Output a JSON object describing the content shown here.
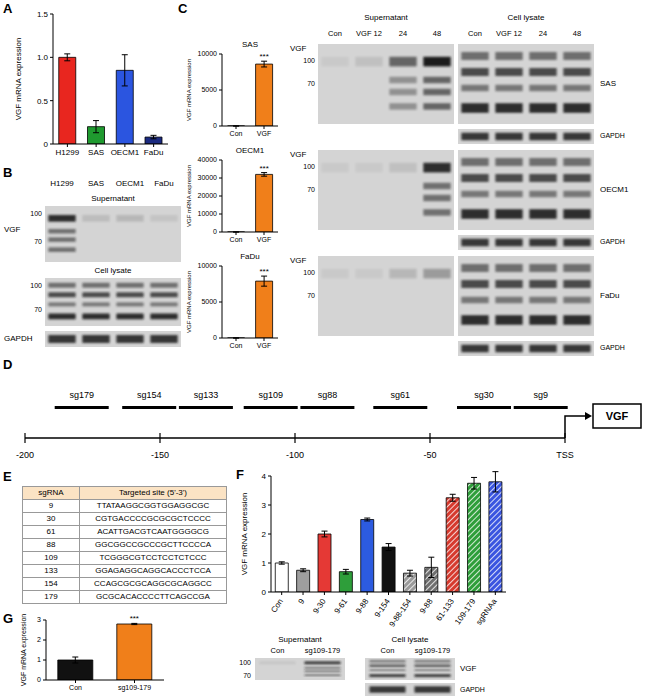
{
  "panel_labels": [
    "A",
    "B",
    "C",
    "D",
    "E",
    "F",
    "G"
  ],
  "chart_data": [
    {
      "type": "bar",
      "y_label": "VGF mRNA expression",
      "categories": [
        "H1299",
        "SAS",
        "OECM1",
        "FaDu"
      ],
      "values": [
        1.0,
        0.2,
        0.85,
        0.08
      ],
      "errors": [
        0.04,
        0.07,
        0.18,
        0.02
      ],
      "colors": [
        "#e8261f",
        "#1f9a2f",
        "#2b55e0",
        "#1b2a80"
      ],
      "ylim": [
        0,
        1.5
      ],
      "yticks": [
        0,
        0.5,
        {
          "value": 1,
          "label": "1.0"
        },
        1.5
      ]
    },
    {
      "type": "bar",
      "title": "SAS",
      "y_label": "VGF mRNA expression",
      "categories": [
        "Con",
        "VGF"
      ],
      "values": [
        1,
        8600
      ],
      "errors": [
        0.2,
        400
      ],
      "colors": [
        "#ffffff",
        "#f07f1a"
      ],
      "ylim": [
        0,
        10000
      ],
      "yticks": [
        0,
        5000,
        10000
      ],
      "annotations": [
        {
          "category": "VGF",
          "text": "***"
        }
      ]
    },
    {
      "type": "bar",
      "title": "OECM1",
      "y_label": "VGF mRNA expression",
      "categories": [
        "Con",
        "VGF"
      ],
      "values": [
        1,
        32000
      ],
      "errors": [
        0.2,
        1000
      ],
      "colors": [
        "#ffffff",
        "#f07f1a"
      ],
      "ylim": [
        0,
        40000
      ],
      "yticks": [
        0,
        10000,
        20000,
        30000,
        40000
      ],
      "annotations": [
        {
          "category": "VGF",
          "text": "***"
        }
      ]
    },
    {
      "type": "bar",
      "title": "FaDu",
      "y_label": "VGF mRNA expression",
      "categories": [
        "Con",
        "VGF"
      ],
      "values": [
        1,
        7900
      ],
      "errors": [
        0.2,
        700
      ],
      "colors": [
        "#ffffff",
        "#f07f1a"
      ],
      "ylim": [
        0,
        10000
      ],
      "yticks": [
        0,
        5000,
        10000
      ],
      "annotations": [
        {
          "category": "VGF",
          "text": "***"
        }
      ]
    },
    {
      "type": "bar",
      "y_label": "VGF mRNA expression",
      "categories": [
        "Con",
        "9",
        "9-30",
        "9-61",
        "9-88",
        "9-154",
        "9-88-154",
        "9-88",
        "61-133",
        "109-179",
        "sgRNAa"
      ],
      "values": [
        1.0,
        0.75,
        2.0,
        0.7,
        2.5,
        1.55,
        0.65,
        0.85,
        3.25,
        3.75,
        3.8
      ],
      "errors": [
        0.04,
        0.05,
        0.1,
        0.08,
        0.05,
        0.12,
        0.1,
        0.35,
        0.12,
        0.2,
        0.35
      ],
      "colors": [
        "#ffffff",
        "#9e9e9e",
        "#e53935",
        "#2e9e3a",
        "#2c5be0",
        "#111111",
        "#9a9a9a",
        "#6f6f6f",
        "#d63a2e",
        "#2e9e3a",
        "#3a55e0"
      ],
      "ylim": [
        0,
        4
      ],
      "yticks": [
        0,
        1,
        2,
        3,
        4
      ]
    },
    {
      "type": "bar",
      "y_label": "VGF mRNA expression",
      "categories": [
        "Con",
        "sg109-179"
      ],
      "values": [
        1.0,
        2.8
      ],
      "errors": [
        0.15,
        0.03
      ],
      "colors": [
        "#111111",
        "#f07f1a"
      ],
      "ylim": [
        0,
        3
      ],
      "yticks": [
        0,
        1,
        2,
        3
      ],
      "annotations": [
        {
          "category": "sg109-179",
          "text": "***"
        }
      ]
    }
  ],
  "blots": {
    "B": {
      "lanes": [
        "H1299",
        "SAS",
        "OECM1",
        "FaDu"
      ],
      "sections": [
        "Supernatant",
        "Cell lysate"
      ],
      "markers": [
        100,
        70
      ],
      "protein": "VGF",
      "loading": "GAPDH",
      "band_intensity": [
        0.9,
        0.12,
        0.15,
        0.08
      ]
    },
    "C": {
      "lanes": [
        "Con",
        "VGF 12",
        "24",
        "48"
      ],
      "sections": [
        "Supernatant",
        "Cell lysate"
      ],
      "markers": [
        100,
        70
      ],
      "protein": "VGF",
      "loading": "GAPDH",
      "rows": [
        {
          "cell": "SAS",
          "band_intensity": [
            0.05,
            0.1,
            0.6,
            1.0
          ]
        },
        {
          "cell": "OECM1",
          "band_intensity": [
            0.05,
            0.05,
            0.1,
            0.9
          ]
        },
        {
          "cell": "FaDu",
          "band_intensity": [
            0.05,
            0.05,
            0.15,
            0.3
          ]
        }
      ]
    },
    "G": {
      "lanes": [
        "Con",
        "sg109-179"
      ],
      "sections": [
        "Supernatant",
        "Cell lysate"
      ],
      "markers": [
        100,
        70
      ],
      "protein": "VGF",
      "loading": "GAPDH",
      "band_intensity": [
        0.08,
        0.9
      ]
    }
  },
  "diagram": {
    "sites": [
      {
        "label": "sg179",
        "position": -179
      },
      {
        "label": "sg154",
        "position": -154
      },
      {
        "label": "sg133",
        "position": -133
      },
      {
        "label": "sg109",
        "position": -109
      },
      {
        "label": "sg88",
        "position": -88
      },
      {
        "label": "sg61",
        "position": -61
      },
      {
        "label": "sg30",
        "position": -30
      },
      {
        "label": "sg9",
        "position": -9
      }
    ],
    "ticks": [
      -200,
      -150,
      -100,
      -50,
      {
        "value": 0,
        "label": "TSS"
      }
    ],
    "gene": "VGF"
  },
  "table": {
    "header": [
      "sgRNA",
      "Targeted site (5'-3')"
    ],
    "rows": [
      [
        "9",
        "TTATAAGGCGGTGGAGGCGC"
      ],
      [
        "30",
        "CGTGACCCCGCGCGCTCCCC"
      ],
      [
        "61",
        "ACATTGACGTCAATGGGGCG"
      ],
      [
        "88",
        "GGCGGCCGCCCGCTTCCCCA"
      ],
      [
        "109",
        "TCGGGCGTCCTCCTCTCCC"
      ],
      [
        "133",
        "GGAGAGGCAGGCACCCTCCA"
      ],
      [
        "154",
        "CCAGCGCGCAGGCGCAGGCC"
      ],
      [
        "179",
        "GCGCACACCCCTTCAGCCGA"
      ]
    ]
  }
}
